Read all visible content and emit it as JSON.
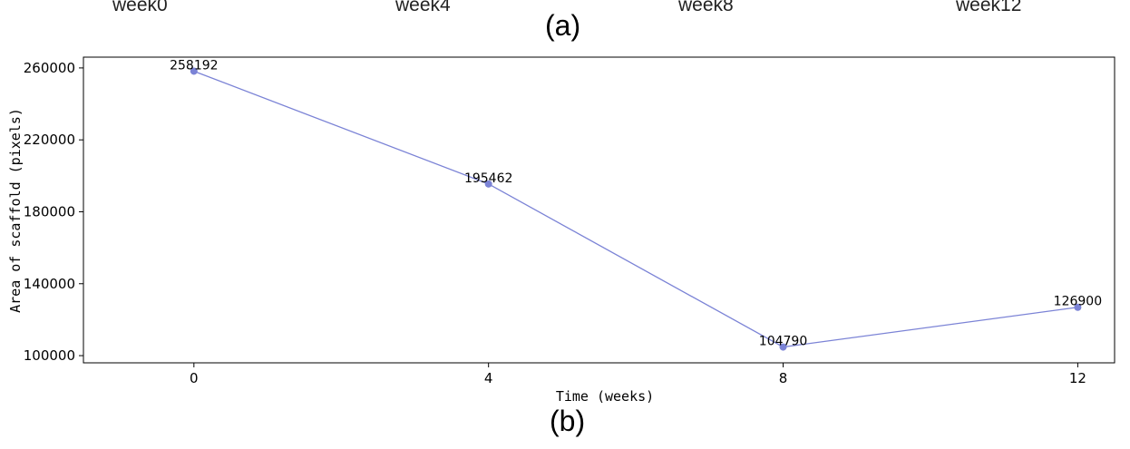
{
  "panel_a": {
    "week_labels": [
      "week0",
      "week4",
      "week8",
      "week12"
    ],
    "label": "(a)"
  },
  "panel_b": {
    "label": "(b)"
  },
  "chart_data": {
    "type": "line",
    "x": [
      0,
      4,
      8,
      12
    ],
    "series": [
      {
        "values": [
          258192,
          195462,
          104790,
          126900
        ],
        "color": "#7b83d6"
      }
    ],
    "data_labels": [
      "258192",
      "195462",
      "104790",
      "126900"
    ],
    "xlabel": "Time (weeks)",
    "ylabel": "Area of scaffold (pixels)",
    "xticks": [
      0,
      4,
      8,
      12
    ],
    "yticks": [
      100000,
      140000,
      180000,
      220000,
      260000
    ],
    "xlim": [
      -1.5,
      12.5
    ],
    "ylim": [
      96000,
      266000
    ],
    "grid": false,
    "legend": false
  }
}
